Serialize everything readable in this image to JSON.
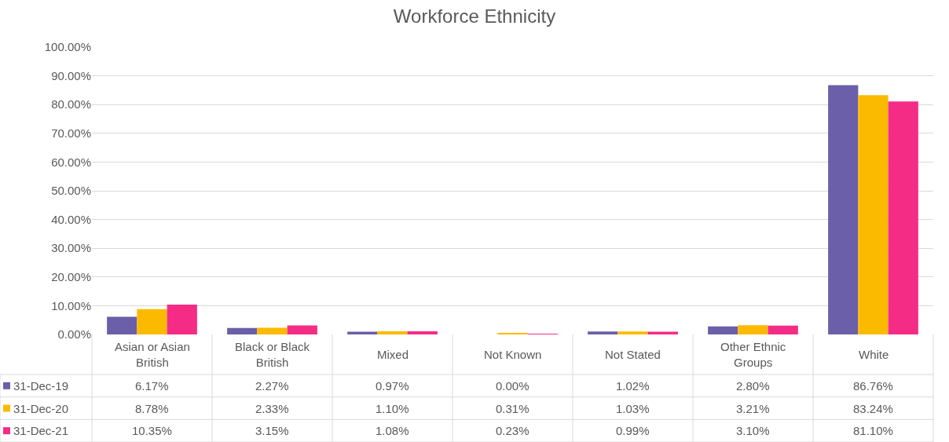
{
  "chart_data": {
    "type": "bar",
    "title": "Workforce Ethnicity",
    "categories": [
      "Asian or Asian British",
      "Black or Black British",
      "Mixed",
      "Not Known",
      "Not Stated",
      "Other Ethnic Groups",
      "White"
    ],
    "series": [
      {
        "name": "31-Dec-19",
        "color": "#6a5fa8",
        "values": [
          6.17,
          2.27,
          0.97,
          0.0,
          1.02,
          2.8,
          86.76
        ],
        "value_labels": [
          "6.17%",
          "2.27%",
          "0.97%",
          "0.00%",
          "1.02%",
          "2.80%",
          "86.76%"
        ]
      },
      {
        "name": "31-Dec-20",
        "color": "#fbba00",
        "values": [
          8.78,
          2.33,
          1.1,
          0.31,
          1.03,
          3.21,
          83.24
        ],
        "value_labels": [
          "8.78%",
          "2.33%",
          "1.10%",
          "0.31%",
          "1.03%",
          "3.21%",
          "83.24%"
        ]
      },
      {
        "name": "31-Dec-21",
        "color": "#f52c86",
        "values": [
          10.35,
          3.15,
          1.08,
          0.23,
          0.99,
          3.1,
          81.1
        ],
        "value_labels": [
          "10.35%",
          "3.15%",
          "1.08%",
          "0.23%",
          "0.99%",
          "3.10%",
          "81.10%"
        ]
      }
    ],
    "ylim": [
      0,
      100
    ],
    "yticks": [
      {
        "value": 0,
        "label": "0.00%"
      },
      {
        "value": 10,
        "label": "10.00%"
      },
      {
        "value": 20,
        "label": "20.00%"
      },
      {
        "value": 30,
        "label": "30.00%"
      },
      {
        "value": 40,
        "label": "40.00%"
      },
      {
        "value": 50,
        "label": "50.00%"
      },
      {
        "value": 60,
        "label": "60.00%"
      },
      {
        "value": 70,
        "label": "70.00%"
      },
      {
        "value": 80,
        "label": "80.00%"
      },
      {
        "value": 90,
        "label": "90.00%"
      },
      {
        "value": 100,
        "label": "100.00%"
      }
    ],
    "grid": "y",
    "legend": "bottom left"
  }
}
